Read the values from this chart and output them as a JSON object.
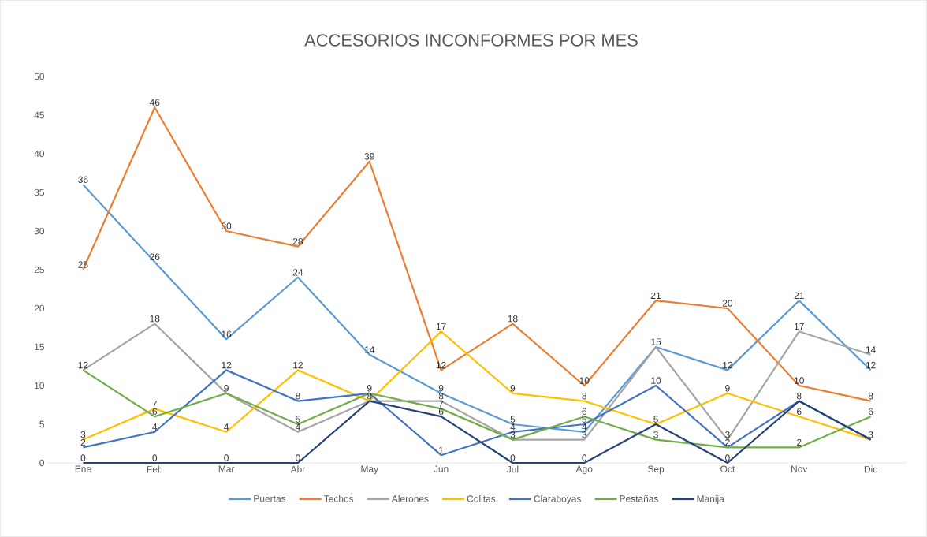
{
  "chart_data": {
    "type": "line",
    "title": "ACCESORIOS INCONFORMES POR MES",
    "categories": [
      "Ene",
      "Feb",
      "Mar",
      "Abr",
      "May",
      "Jun",
      "Jul",
      "Ago",
      "Sep",
      "Oct",
      "Nov",
      "Dic"
    ],
    "series": [
      {
        "name": "Puertas",
        "color": "#5b9bd5",
        "values": [
          36,
          26,
          16,
          24,
          14,
          9,
          5,
          4,
          15,
          12,
          21,
          12
        ],
        "value_labels": [
          "36",
          "26",
          "16",
          "24",
          "14",
          "9",
          "5",
          "4",
          "15",
          "12",
          "21",
          "12"
        ]
      },
      {
        "name": "Techos",
        "color": "#ed7d31",
        "values": [
          25,
          46,
          30,
          28,
          39,
          12,
          18,
          10,
          21,
          20,
          10,
          8
        ],
        "value_labels": [
          "25",
          "46",
          "30",
          "28",
          "39",
          "12",
          "18",
          "10",
          "21",
          "20",
          "10",
          "8"
        ]
      },
      {
        "name": "Alerones",
        "color": "#a5a5a5",
        "values": [
          12,
          18,
          9,
          4,
          8,
          8,
          3,
          3,
          15,
          3,
          17,
          14
        ],
        "value_labels": [
          "12",
          "18",
          "9",
          "4",
          "8",
          "8",
          "3",
          "3",
          null,
          "3",
          "17",
          "14"
        ]
      },
      {
        "name": "Colitas",
        "color": "#ffc000",
        "values": [
          3,
          7,
          4,
          12,
          8,
          17,
          9,
          8,
          5,
          9,
          6,
          3
        ],
        "value_labels": [
          "3",
          "7",
          "4",
          "12",
          null,
          "17",
          "9",
          "8",
          "5",
          "9",
          "6",
          "3"
        ]
      },
      {
        "name": "Claraboyas",
        "color": "#4472c4",
        "values": [
          2,
          4,
          12,
          8,
          9,
          1,
          4,
          5,
          10,
          2,
          8,
          3
        ],
        "value_labels": [
          "2",
          "4",
          "12",
          "8",
          "9",
          "1",
          "4",
          "5",
          "10",
          "2",
          "8",
          null
        ]
      },
      {
        "name": "Pestañas",
        "color": "#70ad47",
        "values": [
          12,
          6,
          9,
          5,
          9,
          7,
          3,
          6,
          3,
          2,
          2,
          6
        ],
        "value_labels": [
          null,
          "6",
          null,
          "5",
          null,
          "7",
          null,
          "6",
          "3",
          null,
          "2",
          "6"
        ]
      },
      {
        "name": "Manija",
        "color": "#264478",
        "values": [
          0,
          0,
          0,
          0,
          8,
          6,
          0,
          0,
          5,
          0,
          8,
          3
        ],
        "value_labels": [
          "0",
          "0",
          "0",
          "0",
          null,
          "6",
          "0",
          "0",
          null,
          "0",
          null,
          null
        ]
      }
    ],
    "ylim": [
      0,
      50
    ],
    "yticks": [
      0,
      5,
      10,
      15,
      20,
      25,
      30,
      35,
      40,
      45,
      50
    ],
    "grid": false,
    "legend": "bottom",
    "marker": "none",
    "line_style": "solid"
  }
}
